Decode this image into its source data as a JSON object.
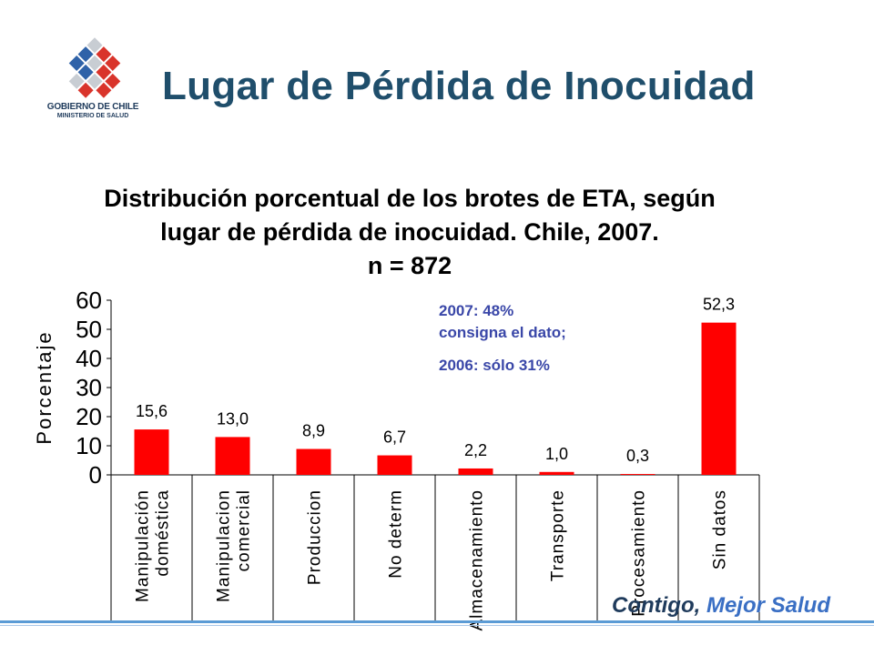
{
  "header": {
    "title": "Lugar de Pérdida de Inocuidad",
    "logo_line1": "GOBIERNO DE CHILE",
    "logo_line2": "MINISTERIO DE SALUD"
  },
  "chart_data": {
    "type": "bar",
    "title_lines": [
      "Distribución porcentual de los brotes de ETA, según",
      "lugar de pérdida de inocuidad.  Chile,   2007.",
      "n = 872"
    ],
    "ylabel": "Porcentaje",
    "ylim": [
      0,
      60
    ],
    "yticks": [
      0,
      10,
      20,
      30,
      40,
      50,
      60
    ],
    "categories": [
      [
        "Manipulación",
        "doméstica"
      ],
      [
        "Manipulacion",
        "comercial"
      ],
      [
        "Produccion"
      ],
      [
        "No determ"
      ],
      [
        "Almacenamiento"
      ],
      [
        "Transporte"
      ],
      [
        "Procesamiento"
      ],
      [
        "Sin datos"
      ]
    ],
    "values": [
      15.6,
      13.0,
      8.9,
      6.7,
      2.2,
      1.0,
      0.3,
      52.3
    ],
    "value_labels": [
      "15,6",
      "13,0",
      "8,9",
      "6,7",
      "2,2",
      "1,0",
      "0,3",
      "52,3"
    ],
    "bar_color": "#ff0000",
    "grid": false
  },
  "note": {
    "line1": "2007: 48%",
    "line2": "consigna el dato;",
    "line3": "2006: sólo 31%"
  },
  "footer": {
    "slogan_part1": "Contigo,",
    "slogan_part2": "Mejor Salud"
  }
}
